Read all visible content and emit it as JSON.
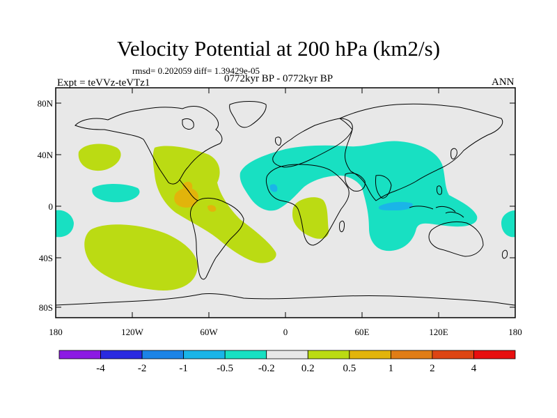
{
  "title": "Velocity Potential at 200 hPa (km2/s)",
  "stats_line": "rmsd= 0.202059 diff= 1.39429e-05",
  "experiment": "Expt = teVVz-teVTz1",
  "period": "0772kyr BP - 0772kyr BP",
  "season": "ANN",
  "colors": {
    "background_field": "#e8e8e8",
    "coast": "#000000",
    "pos_light": "#bbdb13",
    "pos_mid": "#e2b40b",
    "pos_strong": "#e07d16",
    "neg_light": "#18e0c2",
    "neg_mid": "#1ab5e8",
    "neg_strong": "#1c84e6"
  },
  "lat_ticks": [
    "80N",
    "40N",
    "0",
    "40S",
    "80S"
  ],
  "lon_ticks": [
    "180",
    "120W",
    "60W",
    "0",
    "60E",
    "120E",
    "180"
  ],
  "colorbar": {
    "boxes": [
      "#8c1ae3",
      "#2a2ae0",
      "#1c84e6",
      "#1ab5e8",
      "#18e0c2",
      "#e8e8e8",
      "#bbdb13",
      "#e2b40b",
      "#e07d16",
      "#dd4513",
      "#e80f0f"
    ],
    "labels": [
      "-4",
      "-2",
      "-1",
      "-0.5",
      "-0.2",
      "0.2",
      "0.5",
      "1",
      "2",
      "4"
    ]
  }
}
